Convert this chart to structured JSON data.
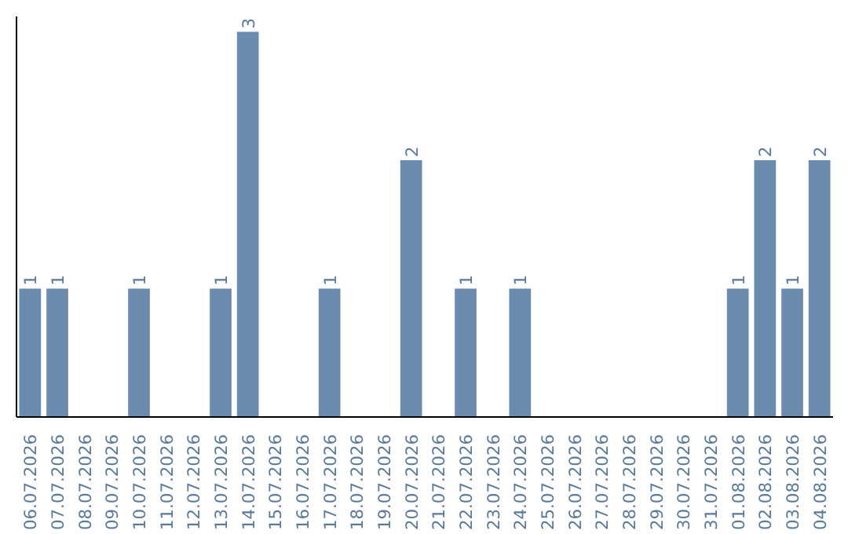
{
  "chart_data": {
    "type": "bar",
    "categories": [
      "06.07.2026",
      "07.07.2026",
      "08.07.2026",
      "09.07.2026",
      "10.07.2026",
      "11.07.2026",
      "12.07.2026",
      "13.07.2026",
      "14.07.2026",
      "15.07.2026",
      "16.07.2026",
      "17.07.2026",
      "18.07.2026",
      "19.07.2026",
      "20.07.2026",
      "21.07.2026",
      "22.07.2026",
      "23.07.2026",
      "24.07.2026",
      "25.07.2026",
      "26.07.2026",
      "27.07.2026",
      "28.07.2026",
      "29.07.2026",
      "30.07.2026",
      "31.07.2026",
      "01.08.2026",
      "02.08.2026",
      "03.08.2026",
      "04.08.2026"
    ],
    "values": [
      1,
      1,
      0,
      0,
      1,
      0,
      0,
      1,
      3,
      0,
      0,
      1,
      0,
      0,
      2,
      0,
      1,
      0,
      1,
      0,
      0,
      0,
      0,
      0,
      0,
      0,
      1,
      2,
      1,
      2
    ],
    "value_labels": [
      "1",
      "1",
      null,
      null,
      "1",
      null,
      null,
      "1",
      "3",
      null,
      null,
      "1",
      null,
      null,
      "2",
      null,
      "1",
      null,
      "1",
      null,
      null,
      null,
      null,
      null,
      null,
      null,
      "1",
      "2",
      "1",
      "2"
    ],
    "color": "#6b8cae",
    "grid": false
  }
}
